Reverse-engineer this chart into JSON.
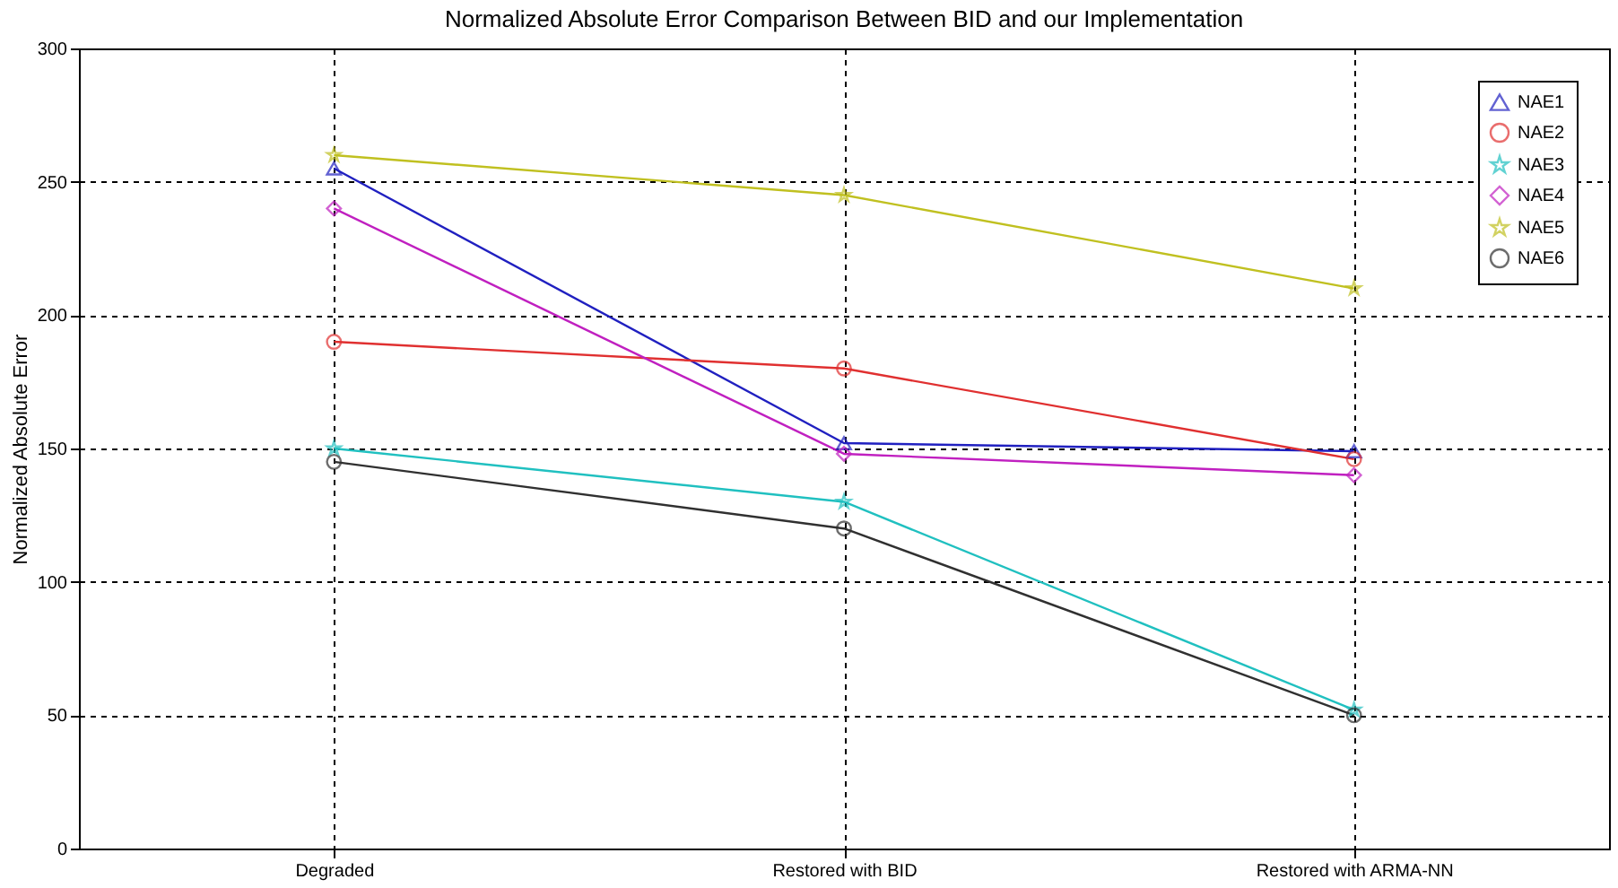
{
  "chart_data": {
    "type": "line",
    "title": "Normalized Absolute Error Comparison Between BID and our Implementation",
    "ylabel": "Normalized Absolute Error",
    "categories": [
      "Degraded",
      "Restored with BID",
      "Restored with ARMA-NN"
    ],
    "ylim": [
      0,
      300
    ],
    "yticks": [
      0,
      50,
      100,
      150,
      200,
      250,
      300
    ],
    "grid": true,
    "legend": "top right",
    "line_style": "solid",
    "series": [
      {
        "name": "NAE1",
        "color": "#2020c0",
        "marker": "triangle",
        "values": [
          255,
          152,
          149
        ]
      },
      {
        "name": "NAE2",
        "color": "#e03030",
        "marker": "circle",
        "values": [
          190,
          180,
          146
        ]
      },
      {
        "name": "NAE3",
        "color": "#20c0c0",
        "marker": "star",
        "values": [
          150,
          130,
          52
        ]
      },
      {
        "name": "NAE4",
        "color": "#c020c0",
        "marker": "diamond",
        "values": [
          240,
          148,
          140
        ]
      },
      {
        "name": "NAE5",
        "color": "#c0c020",
        "marker": "star",
        "values": [
          260,
          245,
          210
        ]
      },
      {
        "name": "NAE6",
        "color": "#303030",
        "marker": "circle",
        "values": [
          145,
          120,
          50
        ]
      }
    ]
  }
}
